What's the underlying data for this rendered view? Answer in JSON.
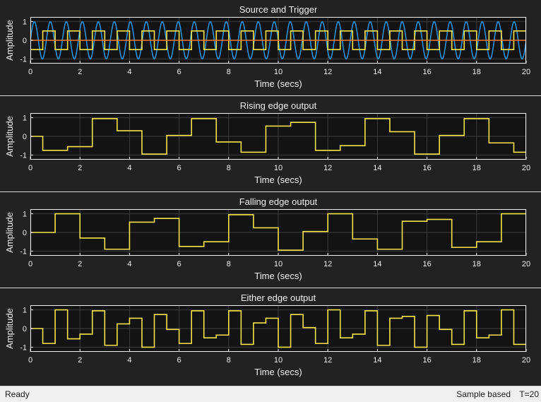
{
  "status_bar": {
    "left_text": "Ready",
    "mode_text": "Sample based",
    "time_text": "T=20"
  },
  "colors": {
    "figure_bg": "#222222",
    "axes_bg": "#131313",
    "axes_edge": "#f0f0f0",
    "grid": "#3c3c3c",
    "text": "#f0f0f0",
    "separator": "#d8d8d8",
    "series_blue": "#2b8ed6",
    "series_orange": "#e6792f",
    "series_yellow": "#f4e64a"
  },
  "chart_data": [
    {
      "type": "line",
      "title": "Source and Trigger",
      "xlabel": "Time (secs)",
      "ylabel": "Amplitude",
      "xlim": [
        0,
        20
      ],
      "ylim": [
        -1.25,
        1.25
      ],
      "xticks": [
        0,
        2,
        4,
        6,
        8,
        10,
        12,
        14,
        16,
        18,
        20
      ],
      "yticks": [
        1,
        0,
        -1
      ],
      "grid": true,
      "series": [
        {
          "kind": "sine",
          "color": "blue",
          "amplitude": 1,
          "frequency_hz": 1.55,
          "phase_rad": 0
        },
        {
          "kind": "square",
          "color": "yellow",
          "amplitude": 0.5,
          "period": 1,
          "high_start": 0.5
        },
        {
          "kind": "constant",
          "color": "orange",
          "value": 0
        }
      ]
    },
    {
      "type": "line",
      "title": "Rising edge output",
      "xlabel": "Time (secs)",
      "ylabel": "Amplitude",
      "xlim": [
        0,
        20
      ],
      "ylim": [
        -1.25,
        1.25
      ],
      "xticks": [
        0,
        2,
        4,
        6,
        8,
        10,
        12,
        14,
        16,
        18,
        20
      ],
      "yticks": [
        1,
        0,
        -1
      ],
      "grid": true,
      "series": [
        {
          "kind": "step",
          "color": "yellow",
          "x": [
            0,
            0.5,
            1.5,
            2.5,
            3.5,
            4.5,
            5.5,
            6.5,
            7.5,
            8.5,
            9.5,
            10.5,
            11.5,
            12.5,
            13.5,
            14.5,
            15.5,
            16.5,
            17.5,
            18.5,
            19.5,
            20
          ],
          "y": [
            0,
            -0.75,
            -0.55,
            0.95,
            0.3,
            -0.95,
            0.05,
            0.95,
            -0.3,
            -0.85,
            0.55,
            0.75,
            -0.75,
            -0.5,
            0.95,
            0.25,
            -0.95,
            0.05,
            0.95,
            -0.35,
            -0.85,
            -0.85
          ]
        }
      ]
    },
    {
      "type": "line",
      "title": "Falling edge output",
      "xlabel": "Time (secs)",
      "ylabel": "Amplitude",
      "xlim": [
        0,
        20
      ],
      "ylim": [
        -1.25,
        1.25
      ],
      "xticks": [
        0,
        2,
        4,
        6,
        8,
        10,
        12,
        14,
        16,
        18,
        20
      ],
      "yticks": [
        1,
        0,
        -1
      ],
      "grid": true,
      "series": [
        {
          "kind": "step",
          "color": "yellow",
          "x": [
            0,
            1,
            2,
            3,
            4,
            5,
            6,
            7,
            8,
            9,
            10,
            11,
            12,
            13,
            14,
            15,
            16,
            17,
            18,
            19,
            20
          ],
          "y": [
            0,
            1,
            -0.3,
            -0.9,
            0.55,
            0.75,
            -0.75,
            -0.5,
            0.95,
            0.25,
            -0.95,
            0.05,
            1,
            -0.35,
            -0.9,
            0.6,
            0.7,
            -0.8,
            -0.5,
            1,
            1
          ]
        }
      ]
    },
    {
      "type": "line",
      "title": "Either edge output",
      "xlabel": "Time (secs)",
      "ylabel": "Amplitude",
      "xlim": [
        0,
        20
      ],
      "ylim": [
        -1.25,
        1.25
      ],
      "xticks": [
        0,
        2,
        4,
        6,
        8,
        10,
        12,
        14,
        16,
        18,
        20
      ],
      "yticks": [
        1,
        0,
        -1
      ],
      "grid": true,
      "series": [
        {
          "kind": "step",
          "color": "yellow",
          "x": [
            0,
            0.5,
            1,
            1.5,
            2,
            2.5,
            3,
            3.5,
            4,
            4.5,
            5,
            5.5,
            6,
            6.5,
            7,
            7.5,
            8,
            8.5,
            9,
            9.5,
            10,
            10.5,
            11,
            11.5,
            12,
            12.5,
            13,
            13.5,
            14,
            14.5,
            15,
            15.5,
            16,
            16.5,
            17,
            17.5,
            18,
            18.5,
            19,
            19.5,
            20
          ],
          "y": [
            0,
            -0.8,
            1,
            -0.55,
            -0.3,
            0.95,
            -0.9,
            0.25,
            0.55,
            -1,
            0.75,
            -0.05,
            -0.8,
            0.95,
            -0.5,
            -0.35,
            0.95,
            -0.85,
            0.3,
            0.55,
            -1,
            0.75,
            0.05,
            -0.8,
            1,
            -0.5,
            -0.3,
            0.95,
            -0.9,
            0.55,
            0.65,
            -1,
            0.7,
            -0.05,
            -0.85,
            0.95,
            -0.5,
            -0.35,
            1,
            -0.85,
            -0.85
          ]
        }
      ]
    }
  ]
}
